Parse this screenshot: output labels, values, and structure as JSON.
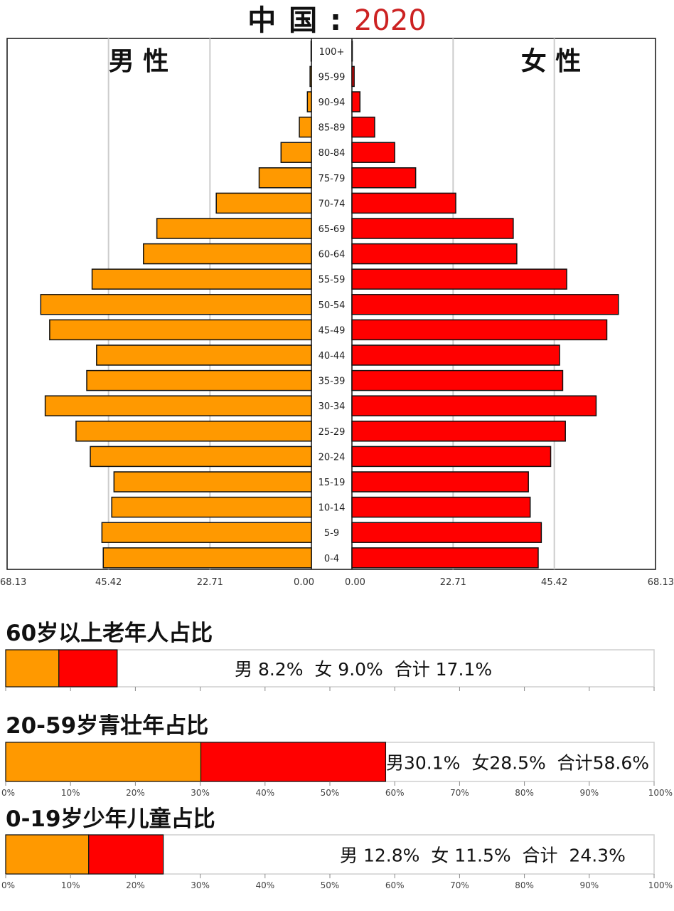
{
  "title": {
    "prefix": "中 国 : ",
    "year": "2020"
  },
  "colors": {
    "male": "#ff9900",
    "female": "#ff0000",
    "grid": "#cccccc",
    "border": "#111111"
  },
  "chart_data": [
    {
      "type": "bar",
      "orientation": "horizontal-pyramid",
      "title": "中 国 : 2020",
      "left_label": "男 性",
      "right_label": "女 性",
      "xlim": [
        0,
        68.13
      ],
      "x_ticks_left": [
        "68.13",
        "45.42",
        "22.71",
        "0.00"
      ],
      "x_ticks_right": [
        "0.00",
        "22.71",
        "45.42",
        "68.13"
      ],
      "categories": [
        "100+",
        "95-99",
        "90-94",
        "85-89",
        "80-84",
        "75-79",
        "70-74",
        "65-69",
        "60-64",
        "55-59",
        "50-54",
        "45-49",
        "40-44",
        "35-39",
        "30-34",
        "25-29",
        "20-24",
        "15-19",
        "10-14",
        "5-9",
        "0-4"
      ],
      "series": [
        {
          "name": "男 性",
          "values": [
            0.03,
            0.3,
            0.9,
            2.7,
            6.8,
            11.7,
            21.3,
            34.6,
            37.6,
            49.1,
            60.6,
            58.6,
            48.1,
            50.3,
            59.6,
            52.7,
            49.5,
            44.2,
            44.7,
            46.9,
            46.6
          ]
        },
        {
          "name": "女 性",
          "values": [
            0.04,
            0.5,
            1.8,
            5.1,
            9.6,
            14.3,
            23.3,
            36.2,
            37.0,
            48.2,
            59.8,
            57.2,
            46.6,
            47.3,
            54.8,
            47.9,
            44.6,
            39.6,
            40.0,
            42.5,
            41.8
          ]
        }
      ]
    },
    {
      "type": "bar",
      "orientation": "stacked-horizontal",
      "title": "60岁以上老年人占比",
      "xlim": [
        0,
        100
      ],
      "x_ticks": [
        "0%",
        "10%",
        "20%",
        "30%",
        "40%",
        "50%",
        "60%",
        "70%",
        "80%",
        "90%",
        "100%"
      ],
      "series": [
        {
          "name": "男",
          "value": 8.2
        },
        {
          "name": "女",
          "value": 9.0
        }
      ],
      "label": "男 8.2%  女 9.0%  合计 17.1%"
    },
    {
      "type": "bar",
      "orientation": "stacked-horizontal",
      "title": "20-59岁青壮年占比",
      "xlim": [
        0,
        100
      ],
      "x_ticks": [
        "0%",
        "10%",
        "20%",
        "30%",
        "40%",
        "50%",
        "60%",
        "70%",
        "80%",
        "90%",
        "100%"
      ],
      "series": [
        {
          "name": "男",
          "value": 30.1
        },
        {
          "name": "女",
          "value": 28.5
        }
      ],
      "label": "男30.1%  女28.5%  合计58.6%"
    },
    {
      "type": "bar",
      "orientation": "stacked-horizontal",
      "title": "0-19岁少年儿童占比",
      "xlim": [
        0,
        100
      ],
      "x_ticks": [
        "0%",
        "10%",
        "20%",
        "30%",
        "40%",
        "50%",
        "60%",
        "70%",
        "80%",
        "90%",
        "100%"
      ],
      "series": [
        {
          "name": "男",
          "value": 12.8
        },
        {
          "name": "女",
          "value": 11.5
        }
      ],
      "label": "男 12.8%  女 11.5%  合计  24.3%"
    }
  ]
}
